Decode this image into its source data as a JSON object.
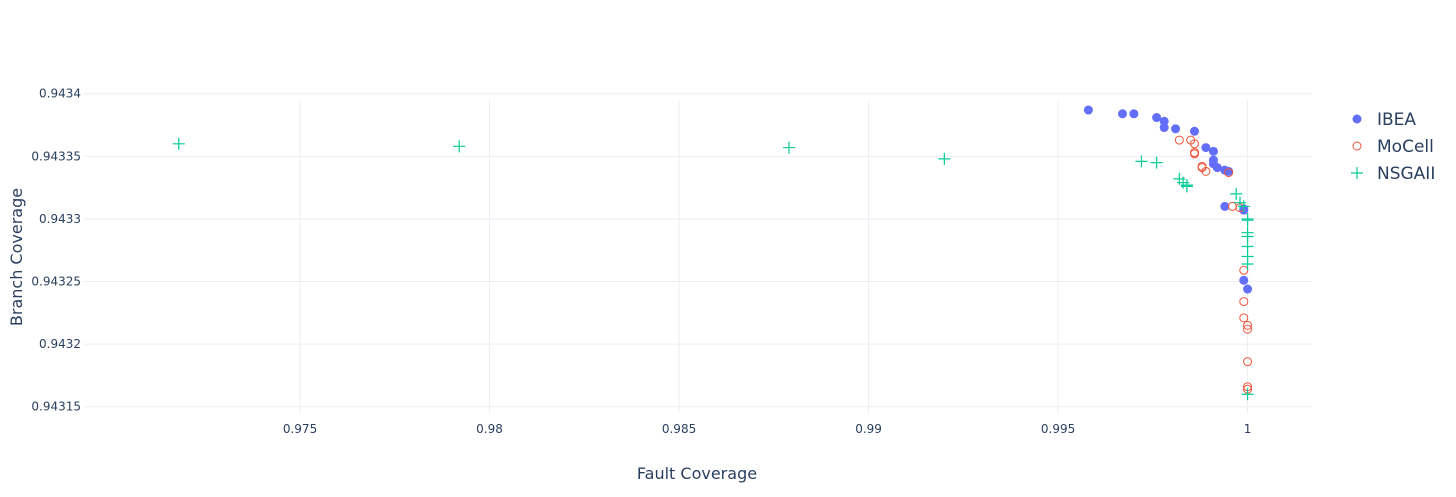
{
  "chart_data": {
    "type": "scatter",
    "xlabel": "Fault Coverage",
    "ylabel": "Branch Coverage",
    "xlim": [
      0.9693,
      1.0017
    ],
    "ylim": [
      0.943145,
      0.943395
    ],
    "xticks": [
      {
        "v": 0.975,
        "label": "0.975"
      },
      {
        "v": 0.98,
        "label": "0.98"
      },
      {
        "v": 0.985,
        "label": "0.985"
      },
      {
        "v": 0.99,
        "label": "0.99"
      },
      {
        "v": 0.995,
        "label": "0.995"
      },
      {
        "v": 1.0,
        "label": "1"
      }
    ],
    "yticks": [
      {
        "v": 0.94315,
        "label": "0.94315"
      },
      {
        "v": 0.9432,
        "label": "0.9432"
      },
      {
        "v": 0.94325,
        "label": "0.94325"
      },
      {
        "v": 0.9433,
        "label": "0.9433"
      },
      {
        "v": 0.94335,
        "label": "0.94335"
      },
      {
        "v": 0.9434,
        "label": "0.9434"
      }
    ],
    "grid": true,
    "legend_position": "top-right",
    "series": [
      {
        "name": "IBEA",
        "marker": "filled-circle",
        "color": "#636efa",
        "points": [
          [
            0.9958,
            0.943387
          ],
          [
            0.9967,
            0.943384
          ],
          [
            0.997,
            0.943384
          ],
          [
            0.9976,
            0.943381
          ],
          [
            0.9978,
            0.943378
          ],
          [
            0.9978,
            0.943373
          ],
          [
            0.9981,
            0.943372
          ],
          [
            0.9986,
            0.94337
          ],
          [
            0.9989,
            0.943357
          ],
          [
            0.9991,
            0.943354
          ],
          [
            0.9991,
            0.943347
          ],
          [
            0.9991,
            0.943344
          ],
          [
            0.9992,
            0.943341
          ],
          [
            0.9994,
            0.943339
          ],
          [
            0.9995,
            0.943338
          ],
          [
            0.9994,
            0.94331
          ],
          [
            0.9999,
            0.943308
          ],
          [
            0.9999,
            0.943307
          ],
          [
            0.9999,
            0.943251
          ],
          [
            1.0,
            0.943244
          ]
        ]
      },
      {
        "name": "MoCell",
        "marker": "open-circle",
        "color": "#ef553b",
        "points": [
          [
            0.9982,
            0.943363
          ],
          [
            0.9985,
            0.943363
          ],
          [
            0.9986,
            0.94336
          ],
          [
            0.9986,
            0.943353
          ],
          [
            0.9986,
            0.943352
          ],
          [
            0.9988,
            0.943342
          ],
          [
            0.9988,
            0.943341
          ],
          [
            0.9989,
            0.943338
          ],
          [
            0.9995,
            0.943337
          ],
          [
            0.9996,
            0.94331
          ],
          [
            0.9998,
            0.943309
          ],
          [
            0.9999,
            0.943259
          ],
          [
            0.9999,
            0.943234
          ],
          [
            0.9999,
            0.943221
          ],
          [
            1.0,
            0.943215
          ],
          [
            1.0,
            0.943212
          ],
          [
            1.0,
            0.943186
          ],
          [
            1.0,
            0.943166
          ],
          [
            1.0,
            0.943164
          ]
        ]
      },
      {
        "name": "NSGAII",
        "marker": "cross",
        "color": "#00cc96",
        "points": [
          [
            0.9718,
            0.94336
          ],
          [
            0.9792,
            0.943358
          ],
          [
            0.9879,
            0.943357
          ],
          [
            0.992,
            0.943348
          ],
          [
            0.9972,
            0.943346
          ],
          [
            0.9976,
            0.943345
          ],
          [
            0.9982,
            0.943332
          ],
          [
            0.9983,
            0.943329
          ],
          [
            0.9984,
            0.943327
          ],
          [
            0.9984,
            0.943326
          ],
          [
            0.9997,
            0.94332
          ],
          [
            0.9998,
            0.943313
          ],
          [
            0.9999,
            0.94331
          ],
          [
            1.0,
            0.9433
          ],
          [
            1.0,
            0.943299
          ],
          [
            1.0,
            0.943289
          ],
          [
            1.0,
            0.943286
          ],
          [
            1.0,
            0.943278
          ],
          [
            1.0,
            0.94327
          ],
          [
            1.0,
            0.943264
          ],
          [
            1.0,
            0.94316
          ]
        ]
      }
    ]
  }
}
